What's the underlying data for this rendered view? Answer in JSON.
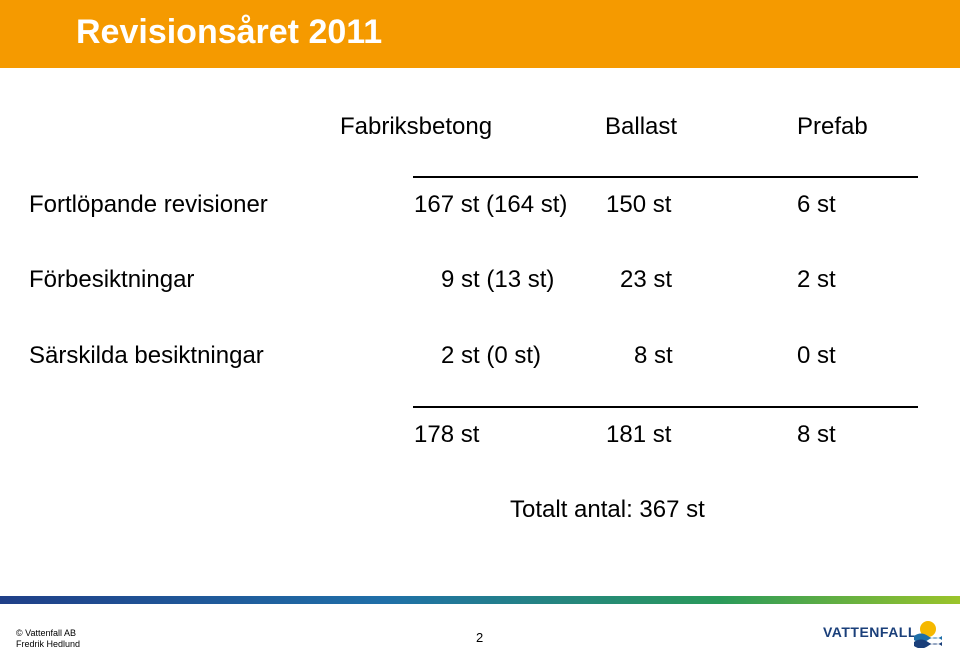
{
  "slide": {
    "title": "Revisionsåret 2011",
    "page_number": "2"
  },
  "table": {
    "columns": [
      "Fabriksbetong",
      "Ballast",
      "Prefab"
    ],
    "rows": [
      {
        "label": "Fortlöpande revisioner",
        "fabriksbetong": "167 st (164 st)",
        "ballast": "150 st",
        "prefab": "6 st"
      },
      {
        "label": "Förbesiktningar",
        "fabriksbetong": "9 st (13 st)",
        "ballast": "23 st",
        "prefab": "2 st"
      },
      {
        "label": "Särskilda besiktningar",
        "fabriksbetong": "2 st (0 st)",
        "ballast": "8 st",
        "prefab": "0 st"
      }
    ],
    "totals": {
      "fabriksbetong": "178 st",
      "ballast": "181 st",
      "prefab": "8 st"
    },
    "grand_total": "Totalt antal: 367 st"
  },
  "footer": {
    "company": "© Vattenfall AB",
    "author": "Fredrik Hedlund",
    "logo_text": "VATTENFALL",
    "logo_icon": "vattenfall-sun-wave-icon",
    "bar_colors": [
      "#1f3f88",
      "#1f6fa8",
      "#2a9a5a",
      "#9bc42a"
    ]
  },
  "colors": {
    "title_bar": "#f59a00",
    "title_text": "#ffffff"
  }
}
